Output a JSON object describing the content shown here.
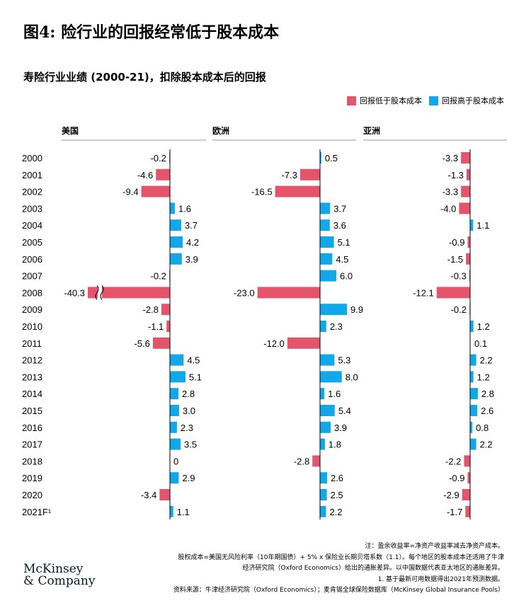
{
  "title": "图4: 险行业的回报经常低于股本成本",
  "subtitle": "寿险行业业绩 (2000-21)，扣除股本成本后的回报",
  "legend": {
    "negative_label": "回报低于股本成本",
    "positive_label": "回报高于股本成本",
    "negative_color": "#e4546b",
    "positive_color": "#12a7e8"
  },
  "notes": [
    "注：盈余收益率=净资产收益率减去净资产成本。",
    "股权成本=美国无风险利率（10年期国债）+ 5% x 保险业长期贝塔系数（1.1）。每个地区的股本成本还适用了牛津",
    "经济研究院（Oxford Economics）给出的通胀差异。以中国数据代表亚太地区的通胀差异。",
    "1. 基于最新可用数据得出2021年预测数据。"
  ],
  "source": "资料来源：牛津经济研究院（Oxford Economics）；麦肯锡全球保险数据库（McKinsey Global Insurance Pools）",
  "logo": {
    "line1": "McKinsey",
    "line2": "& Company"
  },
  "chart_data": {
    "type": "bar",
    "orientation": "horizontal",
    "categories": [
      "2000",
      "2001",
      "2002",
      "2003",
      "2004",
      "2005",
      "2006",
      "2007",
      "2008",
      "2009",
      "2010",
      "2011",
      "2012",
      "2013",
      "2014",
      "2015",
      "2016",
      "2017",
      "2018",
      "2019",
      "2020",
      "2021F¹"
    ],
    "panels": [
      {
        "name": "美国",
        "values": [
          -0.2,
          -4.6,
          -9.4,
          1.6,
          3.7,
          4.2,
          3.9,
          -0.2,
          -40.3,
          -2.8,
          -1.1,
          -5.6,
          4.5,
          5.1,
          2.8,
          3.0,
          2.3,
          3.5,
          0,
          2.9,
          -3.4,
          1.1
        ],
        "labels": [
          "-0.2",
          "-4.6",
          "-9.4",
          "1.6",
          "3.7",
          "4.2",
          "3.9",
          "-0.2",
          "-40.3",
          "-2.8",
          "-1.1",
          "-5.6",
          "4.5",
          "5.1",
          "2.8",
          "3.0",
          "2.3",
          "3.5",
          "0",
          "2.9",
          "-3.4",
          "1.1"
        ],
        "axis_break_category": "2008"
      },
      {
        "name": "欧洲",
        "values": [
          0.5,
          -7.3,
          -16.5,
          3.7,
          3.6,
          5.1,
          4.5,
          6.0,
          -23.0,
          9.9,
          2.3,
          -12.0,
          5.3,
          8.0,
          1.6,
          5.4,
          3.9,
          1.8,
          -2.8,
          2.6,
          2.5,
          2.2
        ],
        "labels": [
          "0.5",
          "-7.3",
          "-16.5",
          "3.7",
          "3.6",
          "5.1",
          "4.5",
          "6.0",
          "-23.0",
          "9.9",
          "2.3",
          "-12.0",
          "5.3",
          "8.0",
          "1.6",
          "5.4",
          "3.9",
          "1.8",
          "-2.8",
          "2.6",
          "2.5",
          "2.2"
        ]
      },
      {
        "name": "亚洲",
        "values": [
          -3.3,
          -1.3,
          -3.3,
          -4.0,
          1.1,
          -0.9,
          -1.5,
          -0.3,
          -12.1,
          -0.2,
          1.2,
          0.1,
          2.2,
          1.2,
          2.8,
          2.6,
          0.8,
          2.2,
          -2.2,
          -0.9,
          -2.9,
          -1.7
        ],
        "labels": [
          "-3.3",
          "-1.3",
          "-3.3",
          "-4.0",
          "1.1",
          "-0.9",
          "-1.5",
          "-0.3",
          "-12.1",
          "-0.2",
          "1.2",
          "0.1",
          "2.2",
          "1.2",
          "2.8",
          "2.6",
          "0.8",
          "2.2",
          "-2.2",
          "-0.9",
          "-2.9",
          "-1.7"
        ]
      }
    ]
  }
}
